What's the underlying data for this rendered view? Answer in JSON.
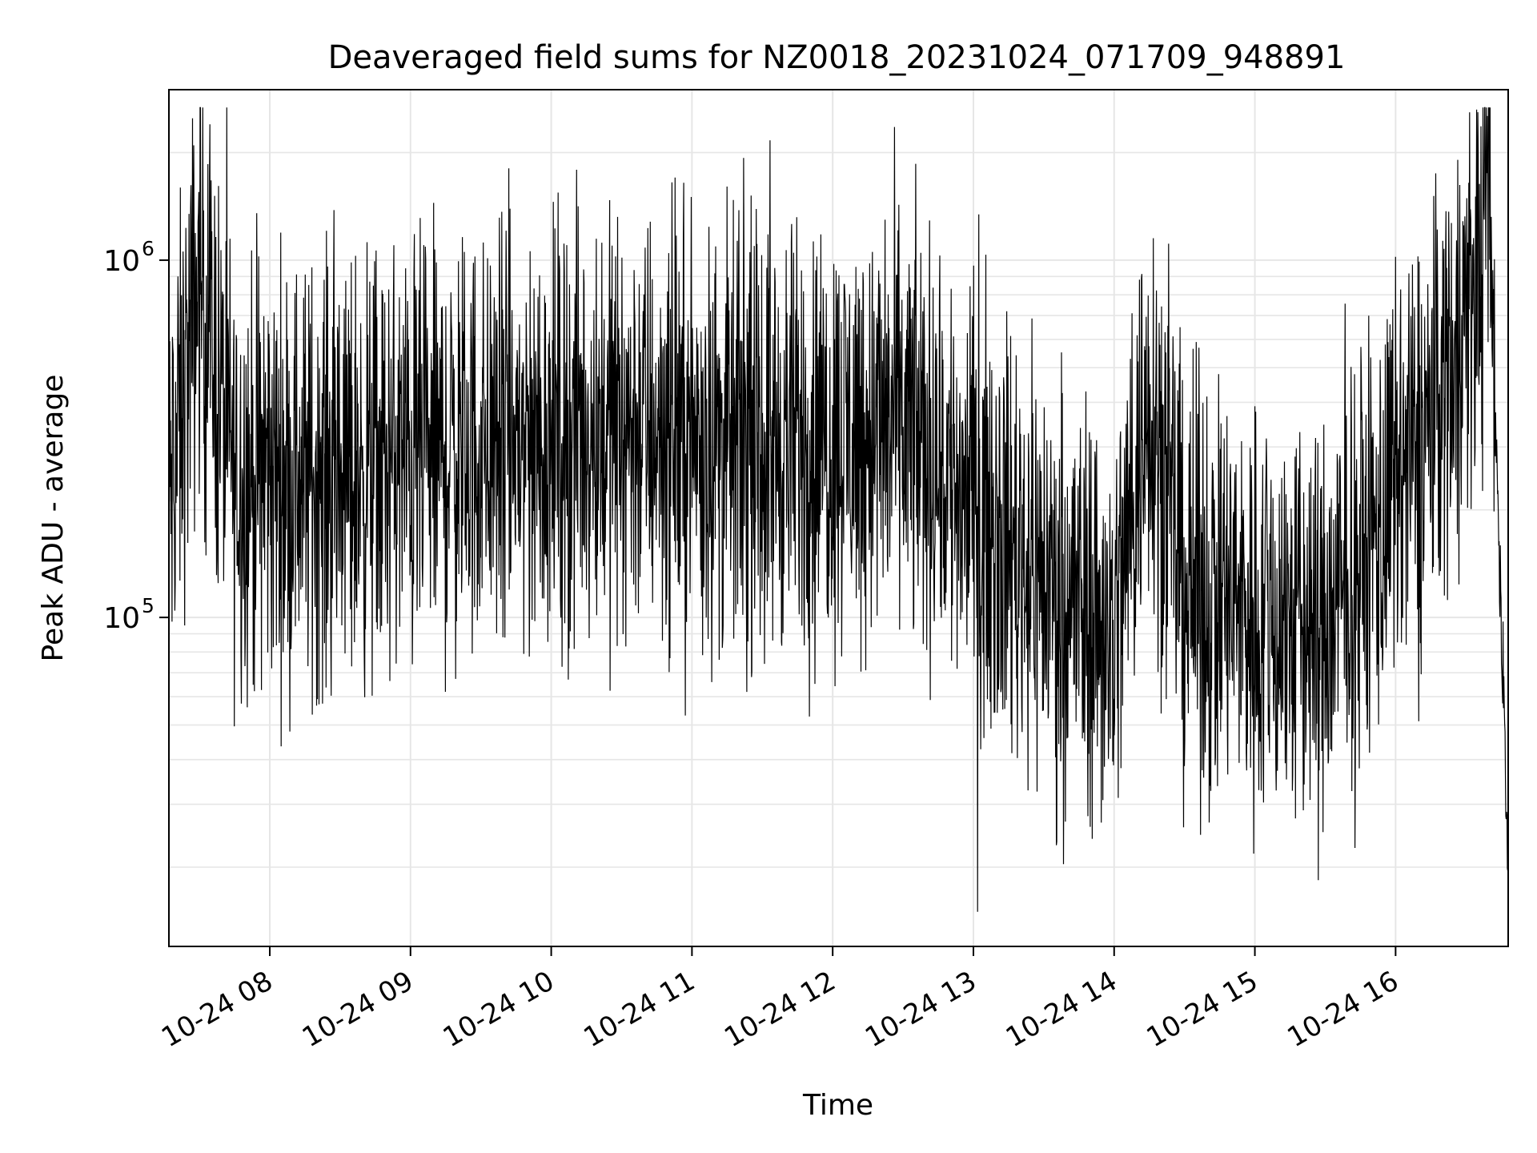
{
  "chart_data": {
    "type": "line",
    "title": "Deaveraged field sums for NZ0018_20231024_071709_948891",
    "xlabel": "Time",
    "ylabel": "Peak ADU - average",
    "x_ticks": [
      "10-24 08",
      "10-24 09",
      "10-24 10",
      "10-24 11",
      "10-24 12",
      "10-24 13",
      "10-24 14",
      "10-24 15",
      "10-24 16"
    ],
    "x_range": [
      "2023-10-24 07:17",
      "2023-10-24 16:48"
    ],
    "y_scale": "log",
    "y_ticks": [
      {
        "value": 100000,
        "base": "10",
        "exp": "5"
      },
      {
        "value": 1000000,
        "base": "10",
        "exp": "6"
      }
    ],
    "ylim": [
      12000,
      3000000
    ],
    "grid": true,
    "line_color": "#000000",
    "grid_color": "#e6e6e6",
    "series_profile": {
      "description_of_trend": [
        {
          "t": "07:17",
          "level": 200000
        },
        {
          "t": "07:30",
          "level": 900000
        },
        {
          "t": "07:45",
          "level": 250000
        },
        {
          "t": "08:30",
          "level": 250000
        },
        {
          "t": "09:30",
          "level": 300000
        },
        {
          "t": "10:30",
          "level": 350000
        },
        {
          "t": "11:30",
          "level": 300000
        },
        {
          "t": "12:30",
          "level": 350000
        },
        {
          "t": "13:30",
          "level": 130000
        },
        {
          "t": "14:00",
          "level": 90000
        },
        {
          "t": "14:15",
          "level": 450000
        },
        {
          "t": "14:30",
          "level": 120000
        },
        {
          "t": "15:30",
          "level": 90000
        },
        {
          "t": "16:10",
          "level": 300000
        },
        {
          "t": "16:35",
          "level": 900000
        },
        {
          "t": "16:40",
          "level": 1500000
        },
        {
          "t": "16:48",
          "level": 20000
        }
      ]
    }
  }
}
